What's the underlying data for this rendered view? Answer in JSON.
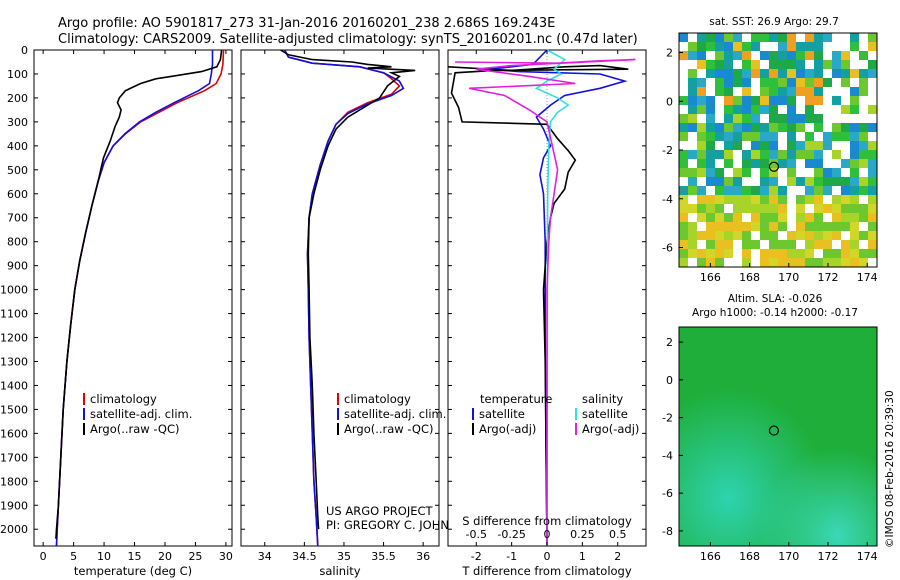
{
  "header": {
    "line1": "Argo profile: AO 5901817_273 31-Jan-2016 20160201_238 2.686S 169.243E",
    "line2": "Climatology: CARS2009. Satellite-adjusted climatology: synTS_20160201.nc (0.47d later)"
  },
  "depth_axis": {
    "label": "",
    "ticks": [
      0,
      100,
      200,
      300,
      400,
      500,
      600,
      700,
      800,
      900,
      1000,
      1100,
      1200,
      1300,
      1400,
      1500,
      1600,
      1700,
      1800,
      1900,
      2000
    ],
    "ylim": [
      0,
      2070
    ]
  },
  "colors": {
    "climatology": "#e00000",
    "satellite": "#1010e0",
    "argo": "#000000",
    "sal_satellite": "#30e0e0",
    "sal_argo": "#e020e0",
    "map_green": "#1fae3a"
  },
  "chart_data": [
    {
      "id": "temperature",
      "type": "line",
      "xlabel": "temperature (deg C)",
      "ylabel": "",
      "xlim": [
        -1.5,
        31
      ],
      "ylim": [
        2070,
        0
      ],
      "xticks": [
        0,
        5,
        10,
        15,
        20,
        25,
        30
      ],
      "legend_position": "lower-center",
      "series": [
        {
          "name": "climatology",
          "color": "#e00000",
          "points": [
            [
              29.6,
              0
            ],
            [
              29.5,
              60
            ],
            [
              29.2,
              100
            ],
            [
              28.4,
              140
            ],
            [
              26.5,
              170
            ],
            [
              22,
              220
            ],
            [
              19,
              260
            ],
            [
              16,
              300
            ],
            [
              13.5,
              350
            ],
            [
              11.5,
              400
            ],
            [
              10,
              470
            ],
            [
              9,
              550
            ],
            [
              8,
              650
            ],
            [
              7,
              760
            ],
            [
              6,
              880
            ],
            [
              5.2,
              1000
            ],
            [
              4.5,
              1150
            ],
            [
              3.9,
              1300
            ],
            [
              3.3,
              1500
            ],
            [
              2.9,
              1700
            ],
            [
              2.5,
              1900
            ],
            [
              2.3,
              2000
            ],
            [
              2.2,
              2070
            ]
          ]
        },
        {
          "name": "satellite-adj. clim.",
          "color": "#1010e0",
          "points": [
            [
              27.8,
              0
            ],
            [
              27.8,
              60
            ],
            [
              27.6,
              100
            ],
            [
              27.3,
              140
            ],
            [
              25.5,
              170
            ],
            [
              21.5,
              220
            ],
            [
              18.5,
              260
            ],
            [
              15.8,
              300
            ],
            [
              13.4,
              350
            ],
            [
              11.5,
              400
            ],
            [
              10,
              470
            ],
            [
              9,
              550
            ],
            [
              8,
              650
            ],
            [
              7,
              760
            ],
            [
              6,
              880
            ],
            [
              5.2,
              1000
            ],
            [
              4.5,
              1150
            ],
            [
              3.9,
              1300
            ],
            [
              3.3,
              1500
            ],
            [
              2.9,
              1700
            ],
            [
              2.5,
              1900
            ],
            [
              2.3,
              2000
            ],
            [
              2.2,
              2070
            ]
          ]
        },
        {
          "name": "Argo(..raw -QC)",
          "color": "#000000",
          "points": [
            [
              29.3,
              0
            ],
            [
              29.1,
              40
            ],
            [
              28.5,
              70
            ],
            [
              26,
              90
            ],
            [
              21,
              110
            ],
            [
              18.5,
              120
            ],
            [
              16,
              140
            ],
            [
              13.5,
              170
            ],
            [
              12.5,
              200
            ],
            [
              12.2,
              220
            ],
            [
              12.8,
              250
            ],
            [
              12.5,
              280
            ],
            [
              11.8,
              320
            ],
            [
              11,
              380
            ],
            [
              9.9,
              450
            ],
            [
              9,
              550
            ],
            [
              8,
              650
            ],
            [
              7,
              760
            ],
            [
              6,
              880
            ],
            [
              5.2,
              1000
            ],
            [
              4.5,
              1150
            ],
            [
              3.9,
              1300
            ],
            [
              3.3,
              1500
            ],
            [
              2.9,
              1700
            ],
            [
              2.5,
              1900
            ],
            [
              2.2,
              2000
            ],
            [
              2.1,
              2040
            ]
          ]
        }
      ]
    },
    {
      "id": "salinity",
      "type": "line",
      "xlabel": "salinity",
      "ylabel": "",
      "xlim": [
        33.7,
        36.2
      ],
      "ylim": [
        2070,
        0
      ],
      "xticks": [
        34,
        34.5,
        35,
        35.5,
        36
      ],
      "legend_position": "lower-center",
      "series": [
        {
          "name": "climatology",
          "color": "#e00000",
          "points": [
            [
              34.25,
              0
            ],
            [
              34.3,
              30
            ],
            [
              34.6,
              55
            ],
            [
              35.2,
              70
            ],
            [
              35.5,
              95
            ],
            [
              35.6,
              120
            ],
            [
              35.7,
              150
            ],
            [
              35.6,
              185
            ],
            [
              35.3,
              220
            ],
            [
              35.05,
              260
            ],
            [
              34.9,
              310
            ],
            [
              34.8,
              380
            ],
            [
              34.7,
              480
            ],
            [
              34.6,
              600
            ],
            [
              34.56,
              700
            ],
            [
              34.54,
              850
            ],
            [
              34.55,
              1000
            ],
            [
              34.56,
              1200
            ],
            [
              34.58,
              1400
            ],
            [
              34.6,
              1600
            ],
            [
              34.62,
              1800
            ],
            [
              34.65,
              1950
            ],
            [
              34.67,
              2070
            ]
          ]
        },
        {
          "name": "satellite-adj. clim.",
          "color": "#1010e0",
          "points": [
            [
              34.25,
              0
            ],
            [
              34.3,
              30
            ],
            [
              34.6,
              55
            ],
            [
              35.2,
              70
            ],
            [
              35.5,
              95
            ],
            [
              35.7,
              130
            ],
            [
              35.75,
              160
            ],
            [
              35.6,
              190
            ],
            [
              35.3,
              225
            ],
            [
              35.05,
              265
            ],
            [
              34.9,
              310
            ],
            [
              34.8,
              380
            ],
            [
              34.7,
              480
            ],
            [
              34.6,
              600
            ],
            [
              34.56,
              700
            ],
            [
              34.54,
              850
            ],
            [
              34.55,
              1000
            ],
            [
              34.56,
              1200
            ],
            [
              34.58,
              1400
            ],
            [
              34.6,
              1600
            ],
            [
              34.62,
              1800
            ],
            [
              34.65,
              1950
            ],
            [
              34.67,
              2070
            ]
          ]
        },
        {
          "name": "Argo(..raw -QC)",
          "color": "#000000",
          "points": [
            [
              34.2,
              0
            ],
            [
              34.3,
              20
            ],
            [
              34.6,
              40
            ],
            [
              35.1,
              50
            ],
            [
              35.3,
              60
            ],
            [
              35.6,
              70
            ],
            [
              35.3,
              75
            ],
            [
              35.9,
              85
            ],
            [
              35.6,
              95
            ],
            [
              35.7,
              110
            ],
            [
              35.55,
              150
            ],
            [
              35.45,
              200
            ],
            [
              35.25,
              240
            ],
            [
              35.05,
              280
            ],
            [
              34.9,
              330
            ],
            [
              34.8,
              400
            ],
            [
              34.7,
              500
            ],
            [
              34.62,
              600
            ],
            [
              34.56,
              700
            ],
            [
              34.55,
              850
            ],
            [
              34.56,
              1000
            ],
            [
              34.57,
              1200
            ],
            [
              34.6,
              1400
            ],
            [
              34.62,
              1600
            ],
            [
              34.65,
              1800
            ],
            [
              34.67,
              1950
            ],
            [
              34.68,
              2000
            ]
          ]
        }
      ]
    },
    {
      "id": "differences",
      "type": "line",
      "xlabel": "T difference from climatology",
      "xlabel_top": "S difference from climatology",
      "xlim": [
        -2.8,
        2.8
      ],
      "ylim": [
        2070,
        0
      ],
      "xticks": [
        -2,
        -1,
        0,
        1,
        2
      ],
      "xticks_salinity": [
        -0.5,
        -0.25,
        0,
        0.25,
        0.5
      ],
      "legend_position": "lower-center",
      "legend_headers": {
        "temperature": "temperature",
        "salinity": "salinity"
      },
      "series": [
        {
          "name": "satellite",
          "group": "temperature",
          "color": "#1010e0",
          "points": [
            [
              0,
              0
            ],
            [
              -0.4,
              60
            ],
            [
              -1.6,
              80
            ],
            [
              -0.8,
              90
            ],
            [
              1.5,
              100
            ],
            [
              2.2,
              130
            ],
            [
              1.5,
              160
            ],
            [
              0.5,
              190
            ],
            [
              0.1,
              230
            ],
            [
              -0.3,
              280
            ],
            [
              -0.1,
              330
            ],
            [
              0.1,
              400
            ],
            [
              -0.1,
              450
            ],
            [
              -0.2,
              520
            ],
            [
              -0.1,
              600
            ],
            [
              -0.05,
              800
            ],
            [
              -0.05,
              1200
            ],
            [
              -0.03,
              1600
            ],
            [
              0,
              2070
            ]
          ]
        },
        {
          "name": "Argo(-adj)",
          "group": "temperature",
          "color": "#000000",
          "points": [
            [
              -2.8,
              70
            ],
            [
              -1,
              85
            ],
            [
              0.5,
              70
            ],
            [
              1.5,
              65
            ],
            [
              2.3,
              80
            ],
            [
              -1.5,
              85
            ],
            [
              -2.6,
              95
            ],
            [
              -2.7,
              180
            ],
            [
              -2.5,
              240
            ],
            [
              -2.4,
              300
            ],
            [
              0,
              310
            ],
            [
              0.3,
              370
            ],
            [
              0.6,
              420
            ],
            [
              0.8,
              460
            ],
            [
              0.6,
              510
            ],
            [
              0.5,
              580
            ],
            [
              0.2,
              640
            ],
            [
              0.1,
              700
            ],
            [
              0,
              800
            ],
            [
              -0.1,
              1000
            ],
            [
              -0.05,
              1300
            ],
            [
              -0.03,
              1600
            ],
            [
              0,
              2050
            ]
          ]
        },
        {
          "name": "satellite",
          "group": "salinity",
          "color": "#30e0e0",
          "points": [
            [
              0,
              0
            ],
            [
              0.5,
              40
            ],
            [
              0.2,
              80
            ],
            [
              0.4,
              100
            ],
            [
              0,
              130
            ],
            [
              -0.3,
              160
            ],
            [
              0.3,
              200
            ],
            [
              0.6,
              230
            ],
            [
              0.3,
              260
            ],
            [
              0.1,
              300
            ],
            [
              0.05,
              400
            ],
            [
              0.02,
              600
            ],
            [
              0.01,
              1000
            ],
            [
              0,
              2070
            ]
          ]
        },
        {
          "name": "Argo(-adj)",
          "group": "salinity",
          "color": "#e020e0",
          "points": [
            [
              -2.6,
              50
            ],
            [
              0.3,
              55
            ],
            [
              1.5,
              45
            ],
            [
              2.5,
              40
            ],
            [
              -1,
              65
            ],
            [
              -2,
              80
            ],
            [
              -0.5,
              110
            ],
            [
              0.8,
              140
            ],
            [
              -2.2,
              160
            ],
            [
              -1.2,
              190
            ],
            [
              -0.5,
              250
            ],
            [
              0,
              300
            ],
            [
              0.15,
              400
            ],
            [
              0.3,
              500
            ],
            [
              0.2,
              600
            ],
            [
              0.1,
              700
            ],
            [
              0.05,
              800
            ],
            [
              0,
              1000
            ],
            [
              0,
              2070
            ]
          ]
        }
      ]
    },
    {
      "id": "sst-map",
      "type": "heatmap",
      "title": "sat. SST: 26.9 Argo: 29.7",
      "xlim": [
        164.4,
        174.5
      ],
      "ylim": [
        -6.8,
        2.8
      ],
      "xticks": [
        166,
        168,
        170,
        172,
        174
      ],
      "yticks": [
        2,
        0,
        -2,
        -4,
        -6
      ],
      "marker": {
        "lon": 169.243,
        "lat": -2.686
      }
    },
    {
      "id": "sla-map",
      "type": "heatmap",
      "title": "Altim. SLA: -0.026",
      "subtitle": "Argo h1000: -0.14 h2000: -0.17",
      "xlim": [
        164.4,
        174.5
      ],
      "ylim": [
        -8.8,
        2.8
      ],
      "xticks": [
        166,
        168,
        170,
        172,
        174
      ],
      "yticks": [
        2,
        0,
        -2,
        -4,
        -6,
        -8
      ],
      "marker": {
        "lon": 169.243,
        "lat": -2.686
      }
    }
  ],
  "credits": {
    "project": "US ARGO PROJECT",
    "pi": "PI: GREGORY C. JOHNSON",
    "imos": "©IMOS 08-Feb-2016 20:39:30"
  }
}
